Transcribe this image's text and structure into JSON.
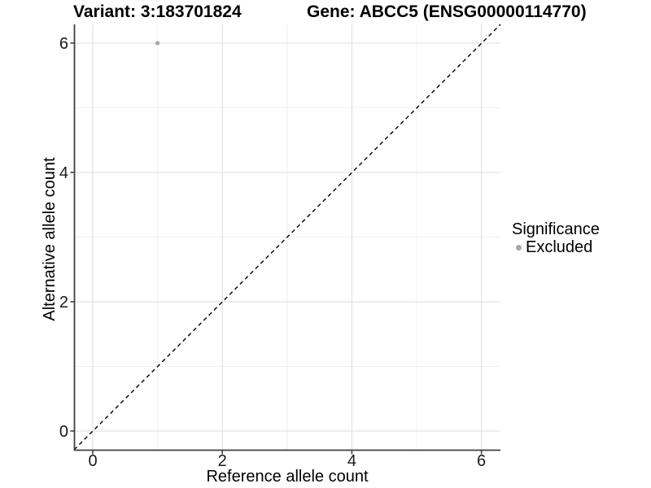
{
  "header": {
    "title_variant": "Variant: 3:183701824",
    "title_gene": "Gene: ABCC5 (ENSG00000114770)"
  },
  "legend": {
    "title": "Significance",
    "position": "right",
    "items": [
      {
        "label": "Excluded",
        "color": "#a6a6a6"
      }
    ]
  },
  "chart_data": {
    "type": "scatter",
    "title_left": "Variant: 3:183701824",
    "title_right": "Gene: ABCC5 (ENSG00000114770)",
    "xlabel": "Reference allele count",
    "ylabel": "Alternative allele count",
    "xlim": [
      -0.29,
      6.3
    ],
    "ylim": [
      -0.29,
      6.3
    ],
    "xticks": [
      0,
      2,
      4,
      6
    ],
    "yticks": [
      0,
      2,
      4,
      6
    ],
    "minor_xticks": [
      1,
      3,
      5
    ],
    "minor_yticks": [
      1,
      3,
      5
    ],
    "grid": true,
    "legend_position": "right",
    "reference_line": {
      "type": "identity y=x",
      "style": "dashed",
      "color": "#000000"
    },
    "series": [
      {
        "name": "Excluded",
        "color": "#a6a6a6",
        "points": [
          {
            "x": 1,
            "y": 6
          }
        ]
      }
    ]
  },
  "colors": {
    "background": "#ffffff",
    "axis_line": "#3f3f3f",
    "tick_text": "#1a1a1a",
    "grid_major": "#e2e2e2",
    "grid_minor": "#f0f0f0",
    "point_gray": "#a6a6a6",
    "identity_line": "#000000"
  }
}
